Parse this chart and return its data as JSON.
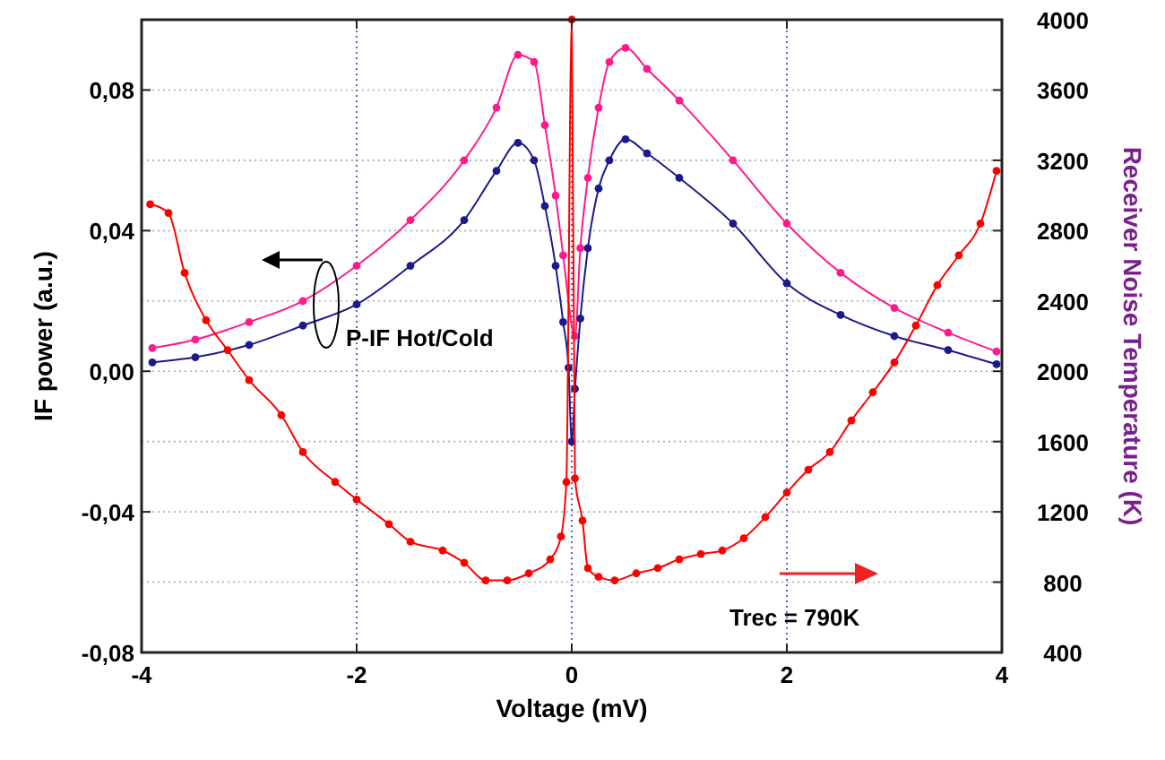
{
  "chart_data": {
    "type": "line",
    "xlabel": "Voltage (mV)",
    "ylabel": "IF power (a.u.)",
    "y2label": "Receiver Noise Temperature (K)",
    "xlim": [
      -4,
      4
    ],
    "xticks": [
      -4,
      -2,
      0,
      2,
      4
    ],
    "ylim": [
      -0.08,
      0.1
    ],
    "yticks": [
      {
        "value": -0.08,
        "label": "-0,08"
      },
      {
        "value": -0.04,
        "label": "-0,04"
      },
      {
        "value": 0,
        "label": "0,00"
      },
      {
        "value": 0.04,
        "label": "0,04"
      },
      {
        "value": 0.08,
        "label": "0,08"
      }
    ],
    "y2lim": [
      400,
      4000
    ],
    "y2ticks": [
      400,
      800,
      1200,
      1600,
      2000,
      2400,
      2800,
      3200,
      3600,
      4000
    ],
    "grid": true,
    "marker": "circle",
    "line_style": "solid",
    "annotations": [
      "P-IF Hot/Cold",
      "Trec = 790K"
    ],
    "series": [
      {
        "color": "#ff1a8c",
        "x": [
          -3.9,
          -3.5,
          -3,
          -2.5,
          -2,
          -1.5,
          -1,
          -0.7,
          -0.5,
          -0.35,
          -0.25,
          -0.15,
          -0.08,
          -0.03,
          0,
          0.03,
          0.08,
          0.15,
          0.25,
          0.35,
          0.5,
          0.7,
          1,
          1.5,
          2,
          2.5,
          3,
          3.5,
          3.95
        ],
        "values": [
          0.0066,
          0.009,
          0.014,
          0.02,
          0.03,
          0.043,
          0.06,
          0.075,
          0.09,
          0.088,
          0.07,
          0.05,
          0.033,
          null,
          null,
          0.01,
          0.035,
          0.055,
          0.075,
          0.088,
          0.092,
          0.086,
          0.077,
          0.06,
          0.042,
          0.028,
          0.018,
          0.011,
          0.0056
        ]
      },
      {
        "color": "#1a1a8c",
        "x": [
          -3.9,
          -3.5,
          -3,
          -2.5,
          -2,
          -1.5,
          -1,
          -0.7,
          -0.5,
          -0.35,
          -0.25,
          -0.15,
          -0.08,
          -0.03,
          0,
          0.03,
          0.08,
          0.15,
          0.25,
          0.35,
          0.5,
          0.7,
          1,
          1.5,
          2,
          2.5,
          3,
          3.5,
          3.95
        ],
        "values": [
          0.0025,
          0.004,
          0.0075,
          0.013,
          0.019,
          0.03,
          0.043,
          0.057,
          0.065,
          0.06,
          0.047,
          0.03,
          0.014,
          0.001,
          -0.02,
          -0.005,
          0.015,
          0.035,
          0.052,
          0.06,
          0.066,
          0.062,
          0.055,
          0.042,
          0.025,
          0.016,
          0.01,
          0.006,
          0.002
        ]
      },
      {
        "color": "#ff0000",
        "axis": "y2",
        "x": [
          -3.92,
          -3.75,
          -3.6,
          -3.4,
          -3.2,
          -3,
          -2.7,
          -2.5,
          -2.2,
          -2,
          -1.7,
          -1.5,
          -1.2,
          -1,
          -0.8,
          -0.6,
          -0.4,
          -0.2,
          -0.1,
          -0.05,
          0,
          0.03,
          0.1,
          0.15,
          0.25,
          0.4,
          0.6,
          0.8,
          1,
          1.2,
          1.4,
          1.6,
          1.8,
          2,
          2.2,
          2.4,
          2.6,
          2.8,
          3,
          3.2,
          3.4,
          3.6,
          3.8,
          3.95
        ],
        "values": [
          2950,
          2900,
          2560,
          2290,
          2120,
          1950,
          1750,
          1540,
          1370,
          1270,
          1130,
          1030,
          980,
          910,
          810,
          810,
          850,
          930,
          1060,
          1370,
          4000,
          1390,
          1150,
          880,
          830,
          810,
          850,
          880,
          930,
          960,
          980,
          1050,
          1170,
          1310,
          1440,
          1540,
          1720,
          1880,
          2050,
          2260,
          2490,
          2660,
          2840,
          3140
        ]
      }
    ]
  }
}
